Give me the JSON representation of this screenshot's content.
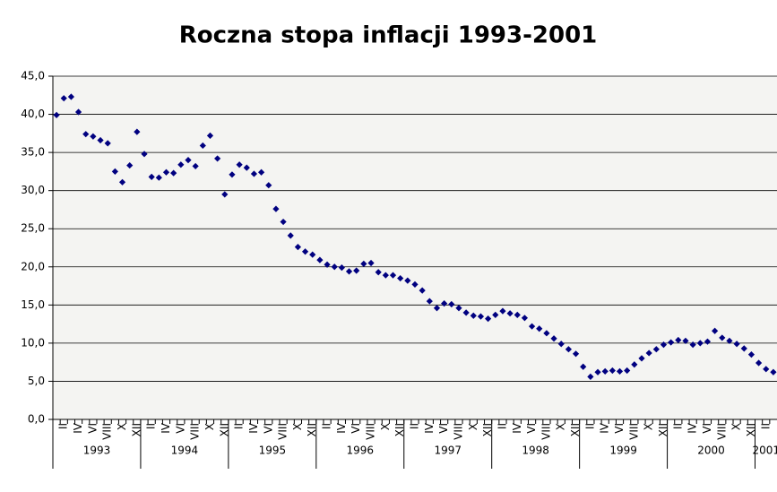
{
  "chart_data": {
    "type": "scatter",
    "title": "Roczna stopa inflacji 1993-2001",
    "categories": [
      null,
      "II",
      null,
      "IV",
      null,
      "VI",
      null,
      "VIII",
      null,
      "X",
      null,
      "XII",
      null,
      "II",
      null,
      "IV",
      null,
      "VI",
      null,
      "VIII",
      null,
      "X",
      null,
      "XII",
      null,
      "II",
      null,
      "IV",
      null,
      "VI",
      null,
      "VIII",
      null,
      "X",
      null,
      "XII",
      null,
      "II",
      null,
      "IV",
      null,
      "VI",
      null,
      "VIII",
      null,
      "X",
      null,
      "XII",
      null,
      "II",
      null,
      "IV",
      null,
      "VI",
      null,
      "VIII",
      null,
      "X",
      null,
      "XII",
      null,
      "II",
      null,
      "IV",
      null,
      "VI",
      null,
      "VIII",
      null,
      "X",
      null,
      "XII",
      null,
      "II",
      null,
      "IV",
      null,
      "VI",
      null,
      "VIII",
      null,
      "X",
      null,
      "XII",
      null,
      "II",
      null,
      "IV",
      null,
      "VI",
      null,
      "VIII",
      null,
      "X",
      null,
      "XII",
      null,
      "II",
      null
    ],
    "years": [
      "1993",
      "1994",
      "1995",
      "1996",
      "1997",
      "1998",
      "1999",
      "2000",
      "2001"
    ],
    "values": [
      39.9,
      42.1,
      42.3,
      40.3,
      37.4,
      37.1,
      36.6,
      36.2,
      32.5,
      31.1,
      33.3,
      37.7,
      34.8,
      31.8,
      31.7,
      32.4,
      32.3,
      33.4,
      34.0,
      33.2,
      35.9,
      37.2,
      34.2,
      29.5,
      32.1,
      33.4,
      33.0,
      32.2,
      32.4,
      30.7,
      27.6,
      25.9,
      24.1,
      22.6,
      22.0,
      21.6,
      20.9,
      20.3,
      20.0,
      19.9,
      19.4,
      19.5,
      20.4,
      20.5,
      19.3,
      18.9,
      18.9,
      18.5,
      18.2,
      17.7,
      16.9,
      15.5,
      14.6,
      15.2,
      15.1,
      14.6,
      14.0,
      13.6,
      13.5,
      13.2,
      13.7,
      14.2,
      13.9,
      13.7,
      13.3,
      12.2,
      11.9,
      11.3,
      10.6,
      9.9,
      9.2,
      8.6,
      6.9,
      5.6,
      6.2,
      6.3,
      6.4,
      6.3,
      6.4,
      7.2,
      8.0,
      8.7,
      9.2,
      9.8,
      10.1,
      10.4,
      10.3,
      9.8,
      10.0,
      10.2,
      11.6,
      10.7,
      10.3,
      9.9,
      9.3,
      8.5,
      7.4,
      6.6,
      6.2
    ],
    "color": "#000080",
    "ylim": [
      0,
      45
    ],
    "yticks": [
      {
        "value": 0,
        "label": "0,0"
      },
      {
        "value": 5,
        "label": "5,0"
      },
      {
        "value": 10,
        "label": "10,0"
      },
      {
        "value": 15,
        "label": "15,0"
      },
      {
        "value": 20,
        "label": "20,0"
      },
      {
        "value": 25,
        "label": "25,0"
      },
      {
        "value": 30,
        "label": "30,0"
      },
      {
        "value": 35,
        "label": "35,0"
      },
      {
        "value": 40,
        "label": "40,0"
      },
      {
        "value": 45,
        "label": "45,0"
      }
    ],
    "grid": true
  }
}
